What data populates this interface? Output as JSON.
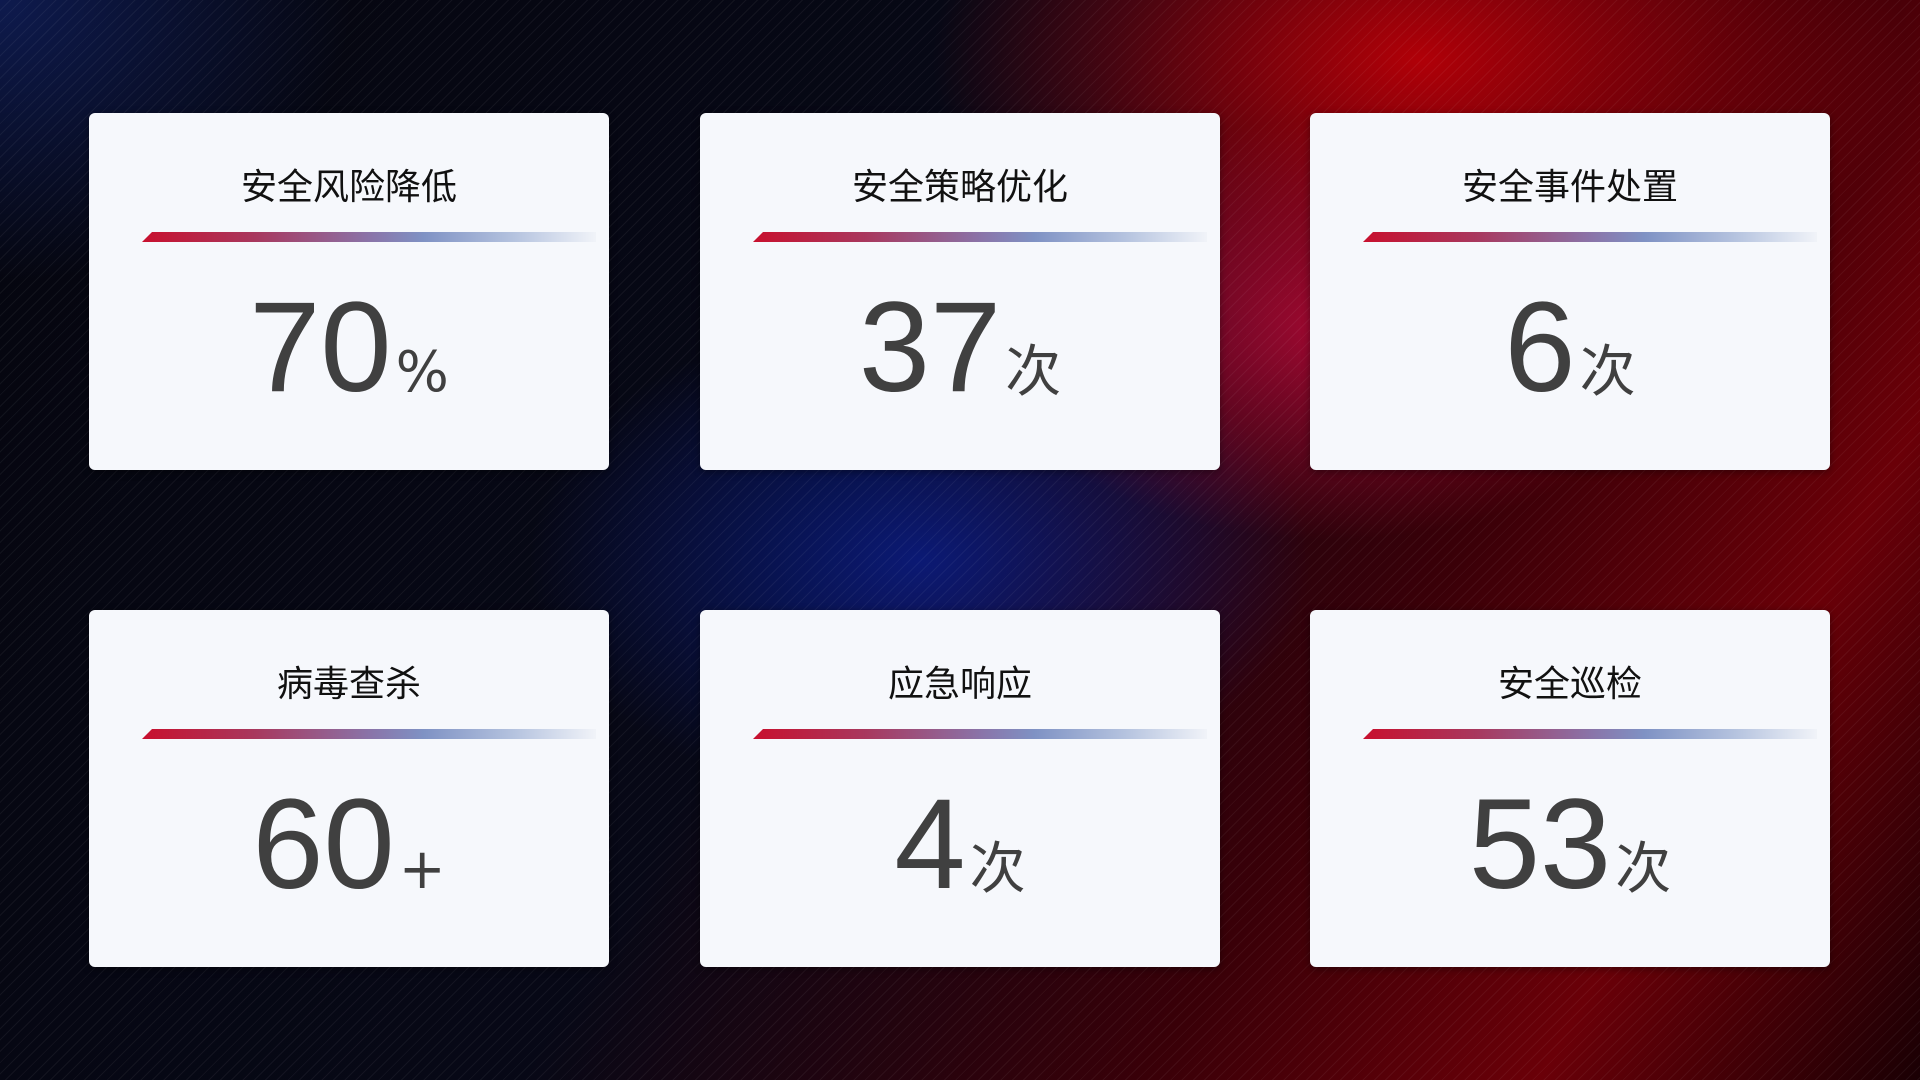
{
  "cards": [
    {
      "title": "安全风险降低",
      "value": "70",
      "unit": "%"
    },
    {
      "title": "安全策略优化",
      "value": "37",
      "unit": "次"
    },
    {
      "title": "安全事件处置",
      "value": "6",
      "unit": "次"
    },
    {
      "title": "病毒查杀",
      "value": "60",
      "unit": "+"
    },
    {
      "title": "应急响应",
      "value": "4",
      "unit": "次"
    },
    {
      "title": "安全巡检",
      "value": "53",
      "unit": "次"
    }
  ],
  "colors": {
    "accent_red": "#c8102e",
    "accent_blue": "#7f92c4",
    "card_bg": "#f6f8fc",
    "value_text": "#404040"
  }
}
